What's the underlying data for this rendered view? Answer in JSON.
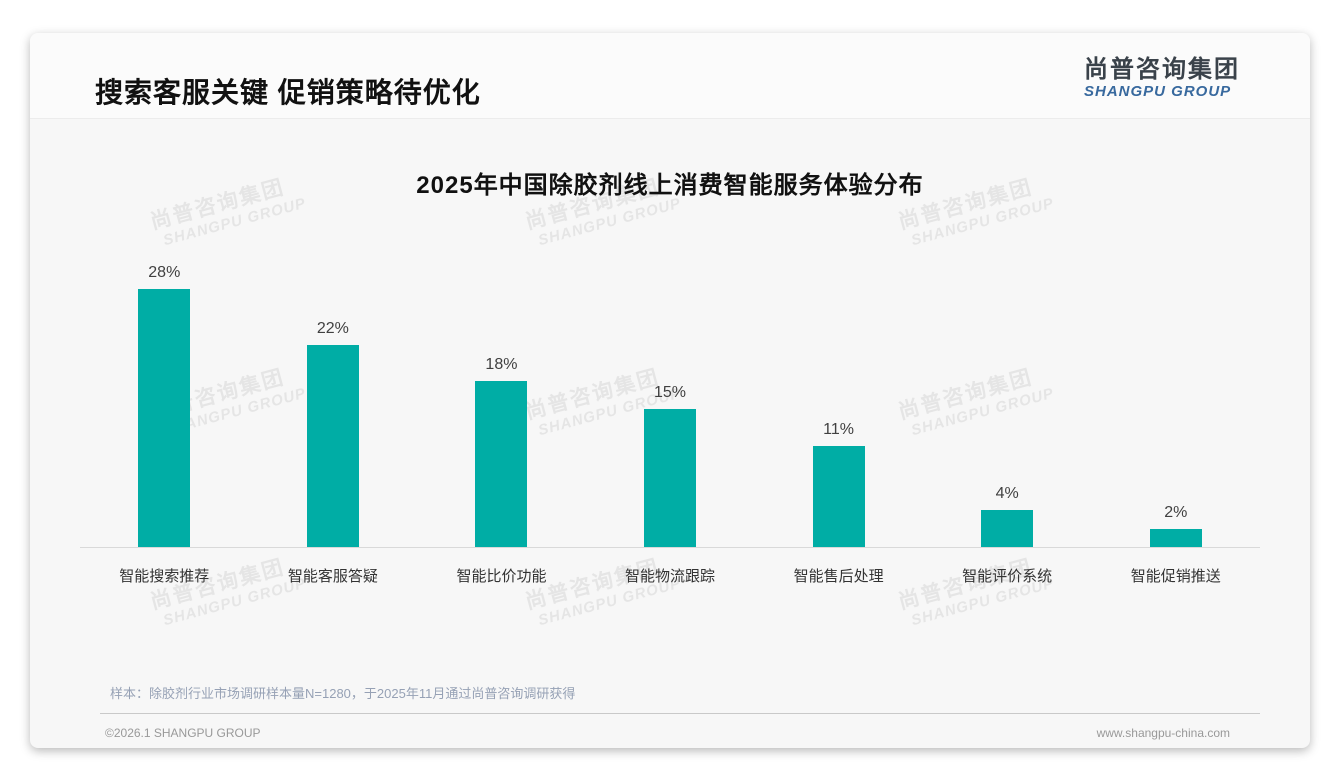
{
  "page": {
    "title": "搜索客服关键 促销策略待优化",
    "logo": {
      "cn": "尚普咨询集团",
      "en": "SHANGPU GROUP"
    },
    "watermark": {
      "cn": "尚普咨询集团",
      "en": "SHANGPU GROUP"
    },
    "footnote": "样本：除胶剂行业市场调研样本量N=1280，于2025年11月通过尚普咨询调研获得",
    "footer_left": "©2026.1 SHANGPU GROUP",
    "footer_right": "www.shangpu-china.com"
  },
  "colors": {
    "bar": "#00ada5",
    "accent_blue": "#38699e",
    "card_bg": "#f7f7f7"
  },
  "chart_data": {
    "type": "bar",
    "title": "2025年中国除胶剂线上消费智能服务体验分布",
    "categories": [
      "智能搜索推荐",
      "智能客服答疑",
      "智能比价功能",
      "智能物流跟踪",
      "智能售后处理",
      "智能评价系统",
      "智能促销推送"
    ],
    "values": [
      28,
      22,
      18,
      15,
      11,
      4,
      2
    ],
    "unit": "%",
    "value_labels": [
      "28%",
      "22%",
      "18%",
      "15%",
      "11%",
      "4%",
      "2%"
    ],
    "xlabel": "",
    "ylabel": "",
    "ylim": [
      0,
      30
    ],
    "grid": false,
    "legend": "none",
    "bar_color": "#00ada5"
  }
}
